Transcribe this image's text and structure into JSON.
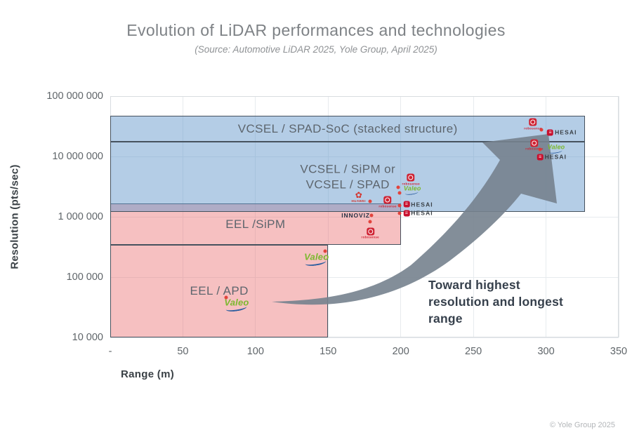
{
  "title": "Evolution of LiDAR performances and technologies",
  "subtitle": "(Source: Automotive LiDAR 2025, Yole Group, April 2025)",
  "footer": "© Yole Group 2025",
  "annotation": {
    "text": "Toward highest resolution and longest range",
    "lines": [
      "Toward highest",
      "resolution and longest",
      "range"
    ]
  },
  "colors": {
    "blue_region": "#BFD7EA",
    "pink_region": "#F5C1C2",
    "overlap_band": "#AFADC5",
    "arrow": "#76828E",
    "data_point": "#E2433C",
    "region_border": "#46525E"
  },
  "chart_data": {
    "type": "scatter",
    "title": "Evolution of LiDAR performances and technologies",
    "source": "Automotive LiDAR 2025, Yole Group, April 2025",
    "xlabel": "Range (m)",
    "ylabel": "Resolution (pts/sec)",
    "x_scale": "linear",
    "x_range": [
      0,
      350
    ],
    "y_scale": "log",
    "y_range": [
      10000,
      100000000
    ],
    "grid": true,
    "x_ticks": [
      {
        "label": "-",
        "value": 0
      },
      {
        "label": "50",
        "value": 50
      },
      {
        "label": "100",
        "value": 100
      },
      {
        "label": "150",
        "value": 150
      },
      {
        "label": "200",
        "value": 200
      },
      {
        "label": "250",
        "value": 250
      },
      {
        "label": "300",
        "value": 300
      },
      {
        "label": "350",
        "value": 350
      }
    ],
    "y_ticks": [
      {
        "label": "10 000",
        "value": 10000
      },
      {
        "label": "100 000",
        "value": 100000
      },
      {
        "label": "1 000 000",
        "value": 1000000
      },
      {
        "label": "10 000 000",
        "value": 10000000
      },
      {
        "label": "100 000 000",
        "value": 100000000
      }
    ],
    "regions": [
      {
        "id": "eel-apd",
        "lines": [
          "EEL / APD"
        ],
        "color": "pink",
        "x": [
          0,
          150
        ],
        "y": [
          10000,
          340000
        ]
      },
      {
        "id": "eel-sipm",
        "lines": [
          "EEL /SiPM"
        ],
        "color": "pink",
        "x": [
          0,
          200
        ],
        "y": [
          340000,
          1650000
        ]
      },
      {
        "id": "vcsel-sipm-spad",
        "lines": [
          "VCSEL / SiPM or",
          "VCSEL / SPAD"
        ],
        "color": "blue",
        "x": [
          0,
          327
        ],
        "y": [
          1200000,
          17500000
        ]
      },
      {
        "id": "vcsel-spad-soc",
        "lines": [
          "VCSEL / SPAD-SoC (stacked structure)"
        ],
        "color": "blue",
        "x": [
          0,
          327
        ],
        "y": [
          17500000,
          47000000
        ]
      }
    ],
    "points": [
      {
        "range_m": 297,
        "pts_per_sec": 28000000
      },
      {
        "range_m": 296,
        "pts_per_sec": 13000000
      },
      {
        "range_m": 198,
        "pts_per_sec": 3100000
      },
      {
        "range_m": 199,
        "pts_per_sec": 2500000
      },
      {
        "range_m": 179,
        "pts_per_sec": 1800000
      },
      {
        "range_m": 199,
        "pts_per_sec": 1550000
      },
      {
        "range_m": 199,
        "pts_per_sec": 1150000
      },
      {
        "range_m": 180,
        "pts_per_sec": 1050000
      },
      {
        "range_m": 179,
        "pts_per_sec": 820000
      },
      {
        "range_m": 148,
        "pts_per_sec": 270000
      },
      {
        "range_m": 80,
        "pts_per_sec": 46000
      }
    ],
    "vendor_markers": [
      {
        "brand": "RoboSense",
        "logo": "robosense",
        "range_m": 291,
        "pts_per_sec": 34000000
      },
      {
        "brand": "Hesai",
        "logo": "hesai",
        "range_m": 311,
        "pts_per_sec": 25000000
      },
      {
        "brand": "RoboSense",
        "logo": "robosense",
        "range_m": 292,
        "pts_per_sec": 15500000
      },
      {
        "brand": "Valeo",
        "logo": "valeo-sm",
        "range_m": 307,
        "pts_per_sec": 13500000
      },
      {
        "brand": "Hesai",
        "logo": "hesai",
        "range_m": 304,
        "pts_per_sec": 9700000
      },
      {
        "brand": "RoboSense",
        "logo": "robosense",
        "range_m": 207,
        "pts_per_sec": 4100000
      },
      {
        "brand": "Valeo",
        "logo": "valeo-sm",
        "range_m": 208,
        "pts_per_sec": 2800000
      },
      {
        "brand": "Huawei",
        "logo": "huawei",
        "range_m": 171,
        "pts_per_sec": 2100000
      },
      {
        "brand": "RoboSense",
        "logo": "robosense",
        "range_m": 191,
        "pts_per_sec": 1750000
      },
      {
        "brand": "Hesai",
        "logo": "hesai",
        "range_m": 212,
        "pts_per_sec": 1600000
      },
      {
        "brand": "Hesai",
        "logo": "hesai",
        "range_m": 212,
        "pts_per_sec": 1140000
      },
      {
        "brand": "Innoviz",
        "logo": "innoviz",
        "range_m": 169,
        "pts_per_sec": 1050000
      },
      {
        "brand": "RoboSense",
        "logo": "robosense",
        "range_m": 179,
        "pts_per_sec": 530000
      },
      {
        "brand": "Valeo",
        "logo": "valeo",
        "range_m": 142,
        "pts_per_sec": 200000
      },
      {
        "brand": "Valeo",
        "logo": "valeo",
        "range_m": 87,
        "pts_per_sec": 35000
      }
    ],
    "logo_text": {
      "robosense": "robosense",
      "hesai": "HESAI",
      "valeo": "Valeo",
      "huawei": "HUAWEI",
      "innoviz": "INNOVIZ"
    }
  }
}
